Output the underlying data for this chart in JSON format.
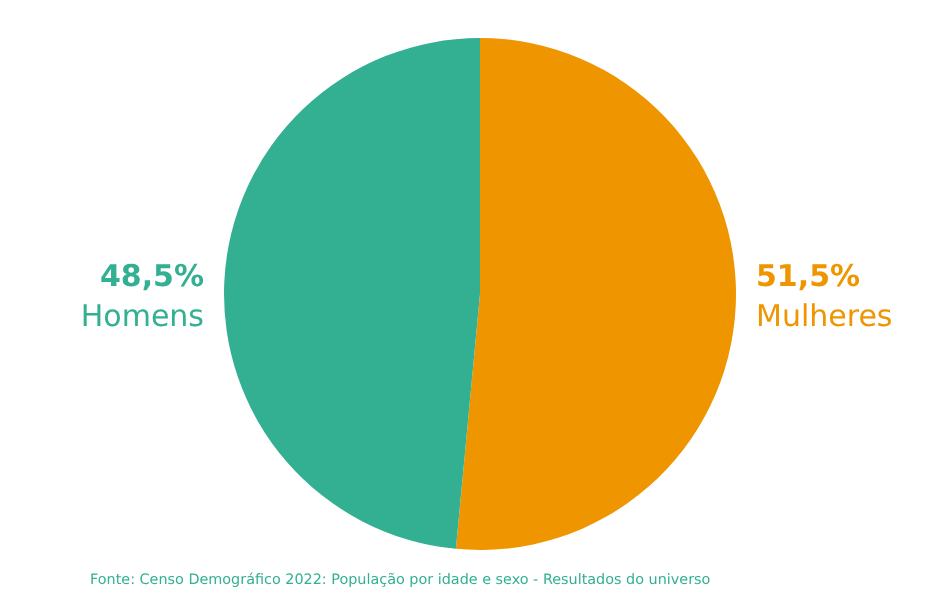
{
  "chart_data": {
    "type": "pie",
    "categories": [
      "Mulheres",
      "Homens"
    ],
    "values": [
      51.5,
      48.5
    ],
    "colors": [
      "#ef9500",
      "#33b092"
    ],
    "value_labels": [
      "51,5%",
      "48,5%"
    ],
    "annotations": [
      "Fonte: Censo Demográfico 2022: População por idade e sexo - Resultados do universo"
    ]
  }
}
